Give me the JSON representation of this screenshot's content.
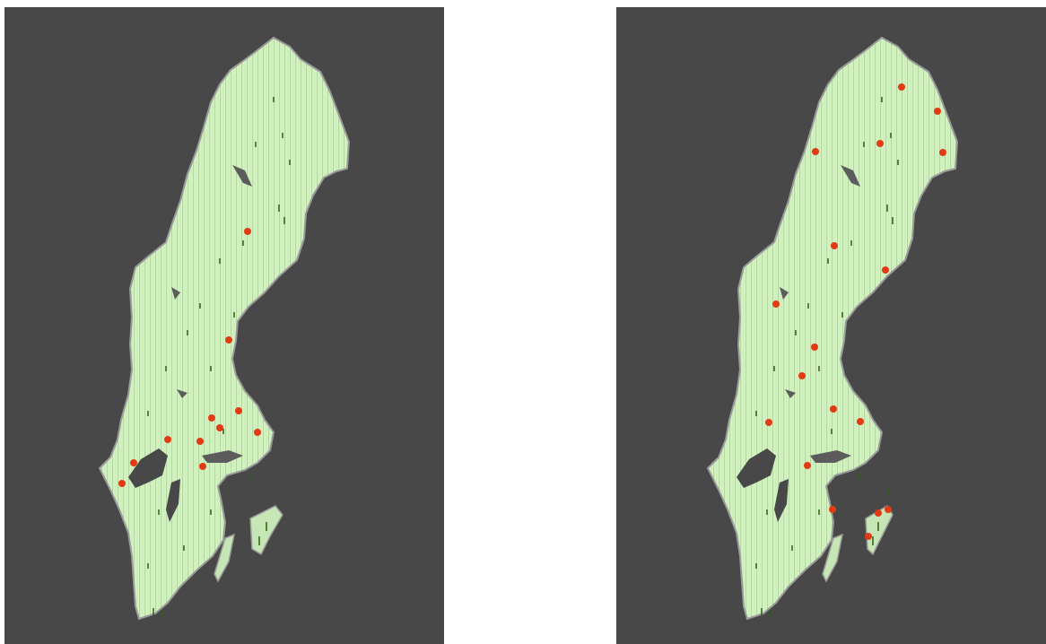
{
  "colors": {
    "panel_background": "#484848",
    "land_fill": "#d4f5c2",
    "land_stripe": "#b4d6a4",
    "land_outline": "#9a9a9a",
    "lake_fill": "#484848",
    "forest_marks": "#2f5e14",
    "point_marker": "#e23a14",
    "page_background": "#ffffff"
  },
  "maps": [
    {
      "id": "left-map",
      "region": "Sweden",
      "marker_count": 11
    },
    {
      "id": "right-map",
      "region": "Sweden",
      "marker_count": 18
    }
  ]
}
